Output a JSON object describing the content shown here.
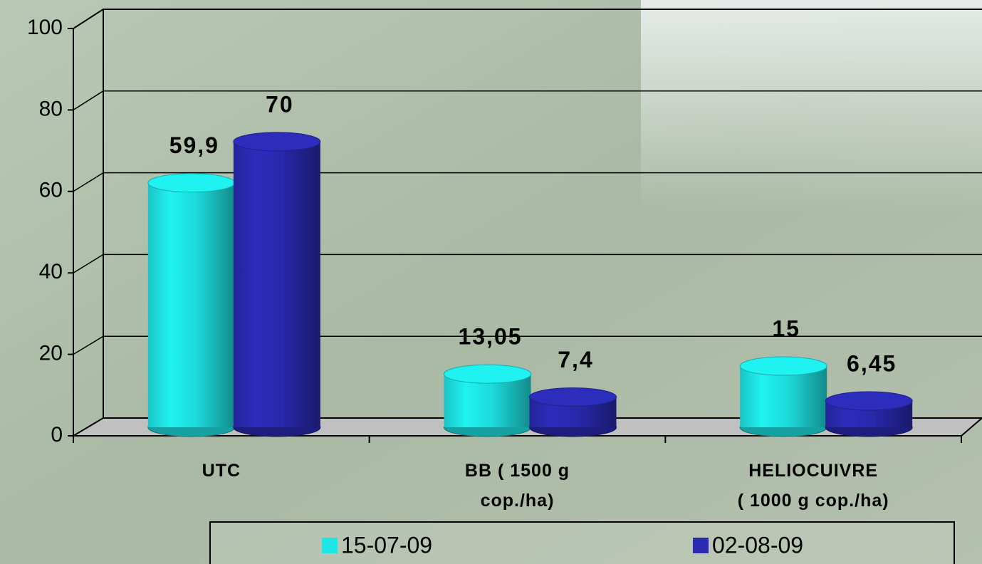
{
  "chart_data": {
    "type": "bar3d",
    "categories": [
      "UTC",
      "BB (  1500 g\ncop./ha)",
      "HELIOCUIVRE\n(  1000 g cop./ha)"
    ],
    "series": [
      {
        "name": "15-07-09",
        "color": "#1ee6e6",
        "values": [
          59.9,
          13.05,
          15
        ],
        "value_labels": [
          "59,9",
          "13,05",
          "15"
        ]
      },
      {
        "name": "02-08-09",
        "color": "#2a2ab4",
        "values": [
          70,
          7.4,
          6.45
        ],
        "value_labels": [
          "70",
          "7,4",
          "6,45"
        ]
      }
    ],
    "ylim": [
      0,
      100
    ],
    "yticks": [
      0,
      20,
      40,
      60,
      80,
      100
    ],
    "grid": true
  }
}
